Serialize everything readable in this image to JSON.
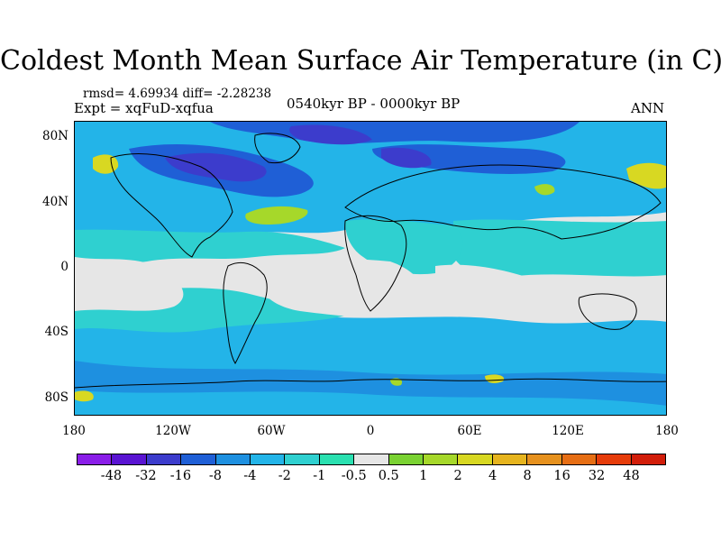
{
  "title": "Coldest Month Mean Surface Air Temperature (in C)",
  "stats": "rmsd= 4.69934 diff= -2.28238",
  "experiment": "Expt = xqFuD-xqfua",
  "period": "0540kyr BP - 0000kyr BP",
  "season": "ANN",
  "axes": {
    "y_ticks": [
      "80N",
      "40N",
      "0",
      "40S",
      "80S"
    ],
    "x_ticks": [
      "180",
      "120W",
      "60W",
      "0",
      "60E",
      "120E",
      "180"
    ]
  },
  "colorbar": {
    "labels": [
      "-48",
      "-32",
      "-16",
      "-8",
      "-4",
      "-2",
      "-1",
      "-0.5",
      "0.5",
      "1",
      "2",
      "4",
      "8",
      "16",
      "32",
      "48"
    ],
    "colors": [
      "#8a1ee8",
      "#5a14d2",
      "#3c3ccc",
      "#1f5fd6",
      "#1e90e0",
      "#23b4e8",
      "#2fd0d0",
      "#2ae0b0",
      "#e6e6e6",
      "#7ad232",
      "#a6d82a",
      "#d8d822",
      "#e6b41e",
      "#e6911e",
      "#e66e14",
      "#e63c0a",
      "#d21e0a"
    ]
  },
  "map": {
    "background": "#e6e6e6",
    "coast_color": "#000000"
  }
}
